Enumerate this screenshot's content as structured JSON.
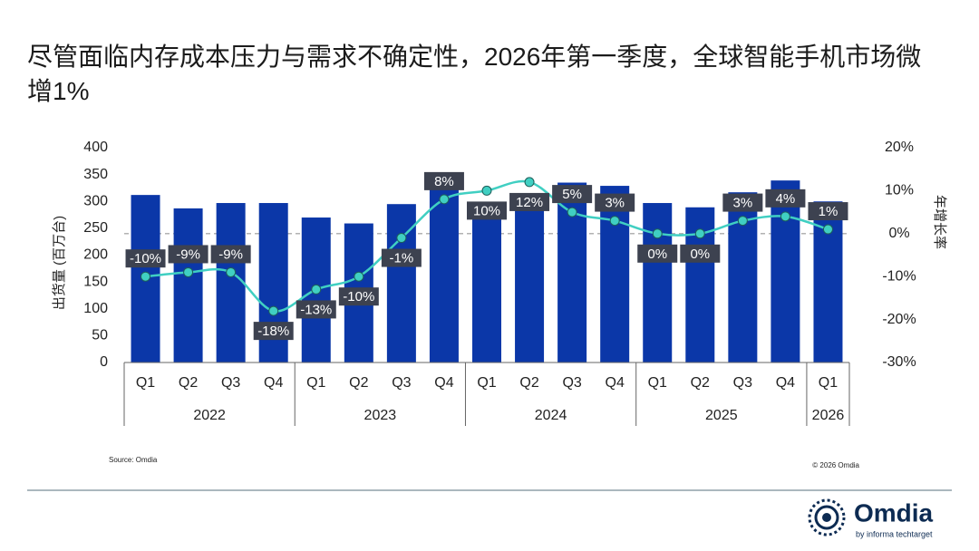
{
  "chart_data": {
    "type": "bar_line",
    "title": "尽管面临内存成本压力与需求不确定性，2026年第一季度，全球智能手机市场微增1%",
    "y_label": "出货量 (百万台)",
    "y2_label": "年增长率",
    "groups": [
      {
        "name": "2022",
        "categories": [
          "Q1",
          "Q2",
          "Q3",
          "Q4"
        ]
      },
      {
        "name": "2023",
        "categories": [
          "Q1",
          "Q2",
          "Q3",
          "Q4"
        ]
      },
      {
        "name": "2024",
        "categories": [
          "Q1",
          "Q2",
          "Q3",
          "Q4"
        ]
      },
      {
        "name": "2025",
        "categories": [
          "Q1",
          "Q2",
          "Q3",
          "Q4"
        ]
      },
      {
        "name": "2026",
        "categories": [
          "Q1"
        ]
      }
    ],
    "series": [
      {
        "type": "bar",
        "color": "#0b37a8",
        "values": [
          312,
          287,
          297,
          297,
          270,
          259,
          295,
          345,
          296,
          285,
          335,
          329,
          297,
          289,
          317,
          339,
          300
        ]
      },
      {
        "type": "line",
        "axis": "y2",
        "color": "#40cfc2",
        "values": [
          -10,
          -9,
          -9,
          -18,
          -13,
          -10,
          -1,
          8,
          10,
          12,
          5,
          3,
          0,
          0,
          3,
          4,
          1
        ],
        "value_labels": [
          "-10%",
          "-9%",
          "-9%",
          "-18%",
          "-13%",
          "-10%",
          "-1%",
          "8%",
          "10%",
          "12%",
          "5%",
          "3%",
          "0%",
          "0%",
          "3%",
          "4%",
          "1%"
        ]
      }
    ],
    "ylim": [
      0,
      400
    ],
    "yticks": [
      0,
      50,
      100,
      150,
      200,
      250,
      300,
      350,
      400
    ],
    "y2lim": [
      -30,
      20
    ],
    "y2ticks": [
      {
        "value": -30,
        "label": "-30%"
      },
      {
        "value": -20,
        "label": "-20%"
      },
      {
        "value": -10,
        "label": "-10%"
      },
      {
        "value": 0,
        "label": "0%"
      },
      {
        "value": 10,
        "label": "10%"
      },
      {
        "value": 20,
        "label": "20%"
      }
    ],
    "source": "Source: Omdia",
    "copyright": "© 2026 Omdia"
  },
  "logo": {
    "name": "Omdia",
    "tagline": "by informa techtarget"
  }
}
